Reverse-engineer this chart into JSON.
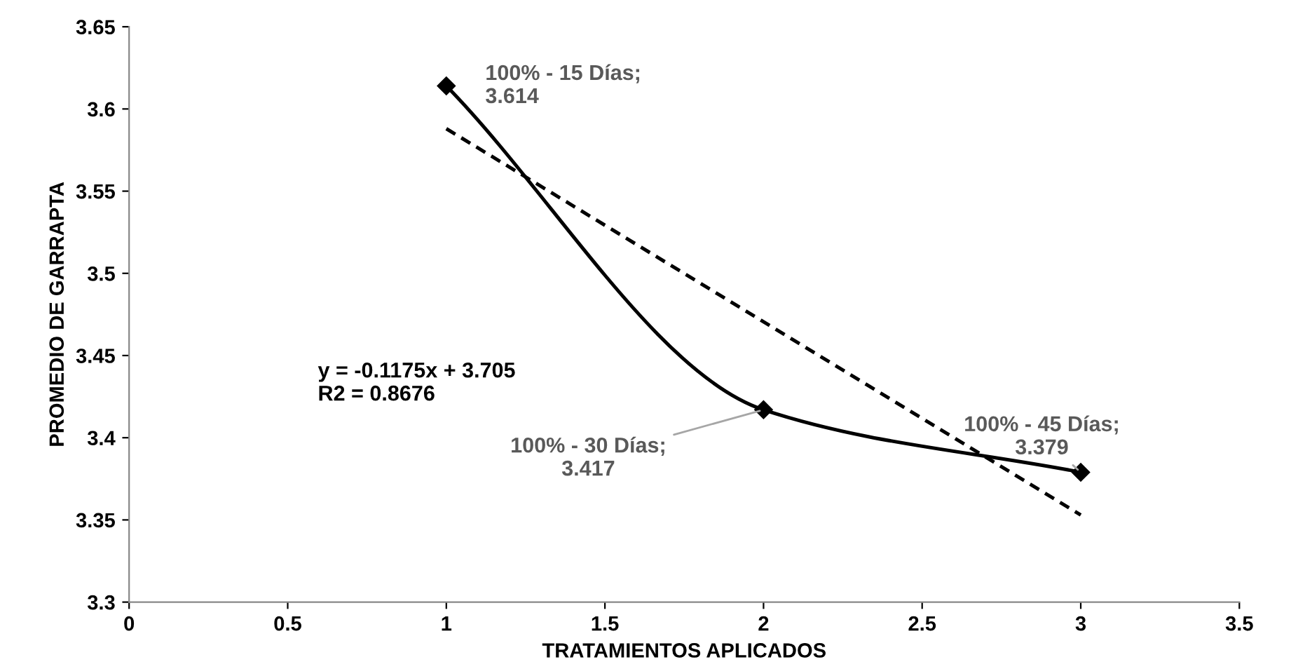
{
  "chart_data": {
    "type": "line",
    "xlabel": "TRATAMIENTOS APLICADOS",
    "ylabel": "PROMEDIO DE GARRAPTA",
    "xlim": [
      0,
      3.5
    ],
    "xticks": [
      0,
      0.5,
      1,
      1.5,
      2,
      2.5,
      3,
      3.5
    ],
    "ylim": [
      3.3,
      3.65
    ],
    "yticks": [
      3.3,
      3.35,
      3.4,
      3.45,
      3.5,
      3.55,
      3.6,
      3.65
    ],
    "grid": false,
    "legend": false,
    "series": [
      {
        "color": "#000000",
        "x": [
          1,
          2,
          3
        ],
        "values": [
          3.614,
          3.417,
          3.379
        ],
        "marker": "diamond",
        "line_style": "solid",
        "value_labels": [
          "100% - 15 Días;\n3.614",
          "100% - 30 Días;\n3.417",
          "100% - 45 Días;\n3.379"
        ]
      },
      {
        "color": "#000000",
        "x": [
          1,
          3
        ],
        "values": [
          3.588,
          3.353
        ],
        "marker": "none",
        "line_style": "dashed"
      }
    ],
    "annotations": [
      "y = -0.1175x + 3.705\nR2 = 0.8676"
    ]
  }
}
